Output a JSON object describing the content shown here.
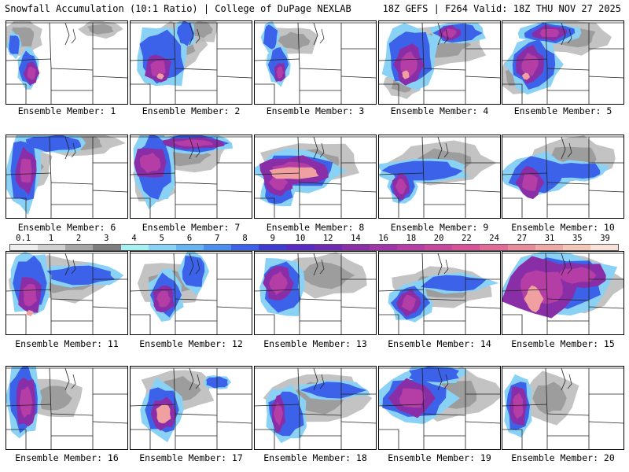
{
  "header": {
    "title": "Snowfall Accumulation (10:1 Ratio) | College of DuPage NEXLAB",
    "run_info": "18Z GEFS | F264 Valid: 18Z THU NOV 27 2025"
  },
  "legend": {
    "ticks": [
      "0.1",
      "1",
      "2",
      "3",
      "4",
      "5",
      "6",
      "7",
      "8",
      "9",
      "10",
      "12",
      "14",
      "16",
      "18",
      "20",
      "22",
      "24",
      "27",
      "31",
      "35",
      "39"
    ],
    "colors": [
      "#eeeeee",
      "#d0d0d0",
      "#a6a6a6",
      "#7e7e7e",
      "#a8f0f0",
      "#8ad2f5",
      "#68b4f0",
      "#4b8ff0",
      "#3b62e8",
      "#3d3bd2",
      "#5a2bc4",
      "#6f2ab5",
      "#8a2ea8",
      "#9f35a8",
      "#b43da6",
      "#c8469e",
      "#d85298",
      "#e26a96",
      "#e88c9b",
      "#efa9a6",
      "#f4c6b8",
      "#f8e2d8"
    ]
  },
  "panels": [
    {
      "label": "Ensemble Member: 1"
    },
    {
      "label": "Ensemble Member: 2"
    },
    {
      "label": "Ensemble Member: 3"
    },
    {
      "label": "Ensemble Member: 4"
    },
    {
      "label": "Ensemble Member: 5"
    },
    {
      "label": "Ensemble Member: 6"
    },
    {
      "label": "Ensemble Member: 7"
    },
    {
      "label": "Ensemble Member: 8"
    },
    {
      "label": "Ensemble Member: 9"
    },
    {
      "label": "Ensemble Member: 10"
    },
    {
      "label": "Ensemble Member: 11"
    },
    {
      "label": "Ensemble Member: 12"
    },
    {
      "label": "Ensemble Member: 13"
    },
    {
      "label": "Ensemble Member: 14"
    },
    {
      "label": "Ensemble Member: 15"
    },
    {
      "label": "Ensemble Member: 16"
    },
    {
      "label": "Ensemble Member: 17"
    },
    {
      "label": "Ensemble Member: 18"
    },
    {
      "label": "Ensemble Member: 19"
    },
    {
      "label": "Ensemble Member: 20"
    }
  ]
}
